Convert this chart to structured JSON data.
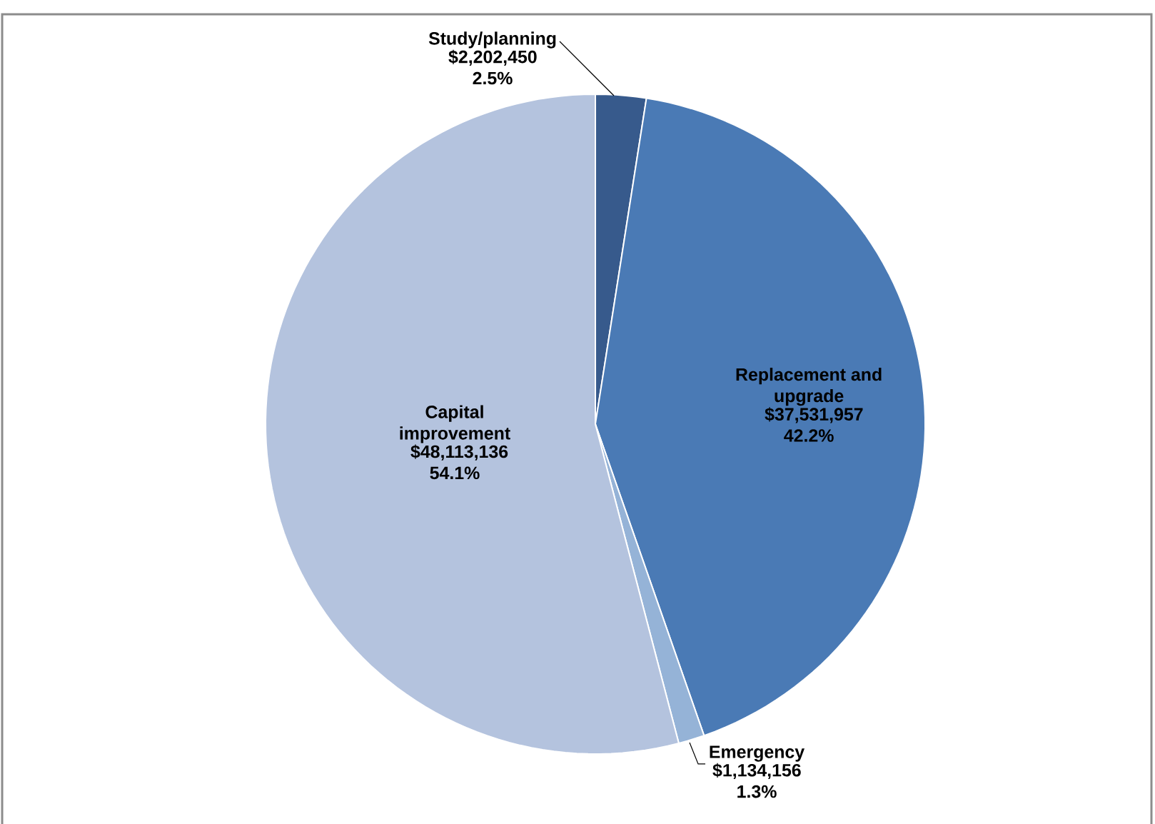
{
  "chart_data": {
    "type": "pie",
    "categories": [
      "Study/planning",
      "Replacement and upgrade",
      "Emergency",
      "Capital improvement"
    ],
    "values": [
      2202450,
      37531957,
      1134156,
      48113136
    ],
    "colors": [
      "#375a8c",
      "#4a7ab5",
      "#95b3d7",
      "#b4c3de"
    ],
    "value_labels": [
      "$2,202,450 2.5%",
      "$37,531,957 42.2%",
      "$1,134,156 1.3%",
      "$48,113,136 54.1%"
    ]
  }
}
